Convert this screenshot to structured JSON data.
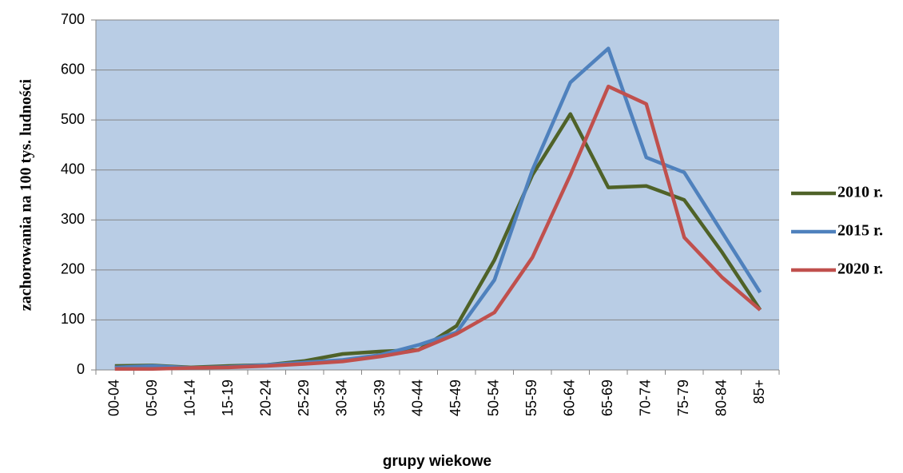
{
  "chart_data": {
    "type": "line",
    "xlabel": "grupy wiekowe",
    "ylabel": "zachorowania na 100 tys. ludności",
    "categories": [
      "00-04",
      "05-09",
      "10-14",
      "15-19",
      "20-24",
      "25-29",
      "30-34",
      "35-39",
      "40-44",
      "45-49",
      "50-54",
      "55-59",
      "60-64",
      "65-69",
      "70-74",
      "75-79",
      "80-84",
      "85+"
    ],
    "series": [
      {
        "name": "2010 r.",
        "color": "#4f6228",
        "values": [
          8,
          9,
          5,
          8,
          10,
          18,
          32,
          37,
          40,
          88,
          220,
          390,
          512,
          365,
          368,
          340,
          235,
          120
        ]
      },
      {
        "name": "2015 r.",
        "color": "#4f81bd",
        "values": [
          5,
          8,
          4,
          6,
          10,
          15,
          20,
          30,
          50,
          75,
          180,
          400,
          575,
          643,
          425,
          395,
          275,
          155
        ]
      },
      {
        "name": "2020 r.",
        "color": "#c0504d",
        "values": [
          2,
          2,
          4,
          5,
          8,
          12,
          17,
          27,
          40,
          72,
          115,
          225,
          390,
          567,
          532,
          265,
          185,
          120
        ]
      }
    ],
    "ylim": [
      0,
      700
    ],
    "yticks": [
      0,
      100,
      200,
      300,
      400,
      500,
      600,
      700
    ],
    "grid": true,
    "plot_background": "#b9cde5",
    "legend": "right"
  }
}
